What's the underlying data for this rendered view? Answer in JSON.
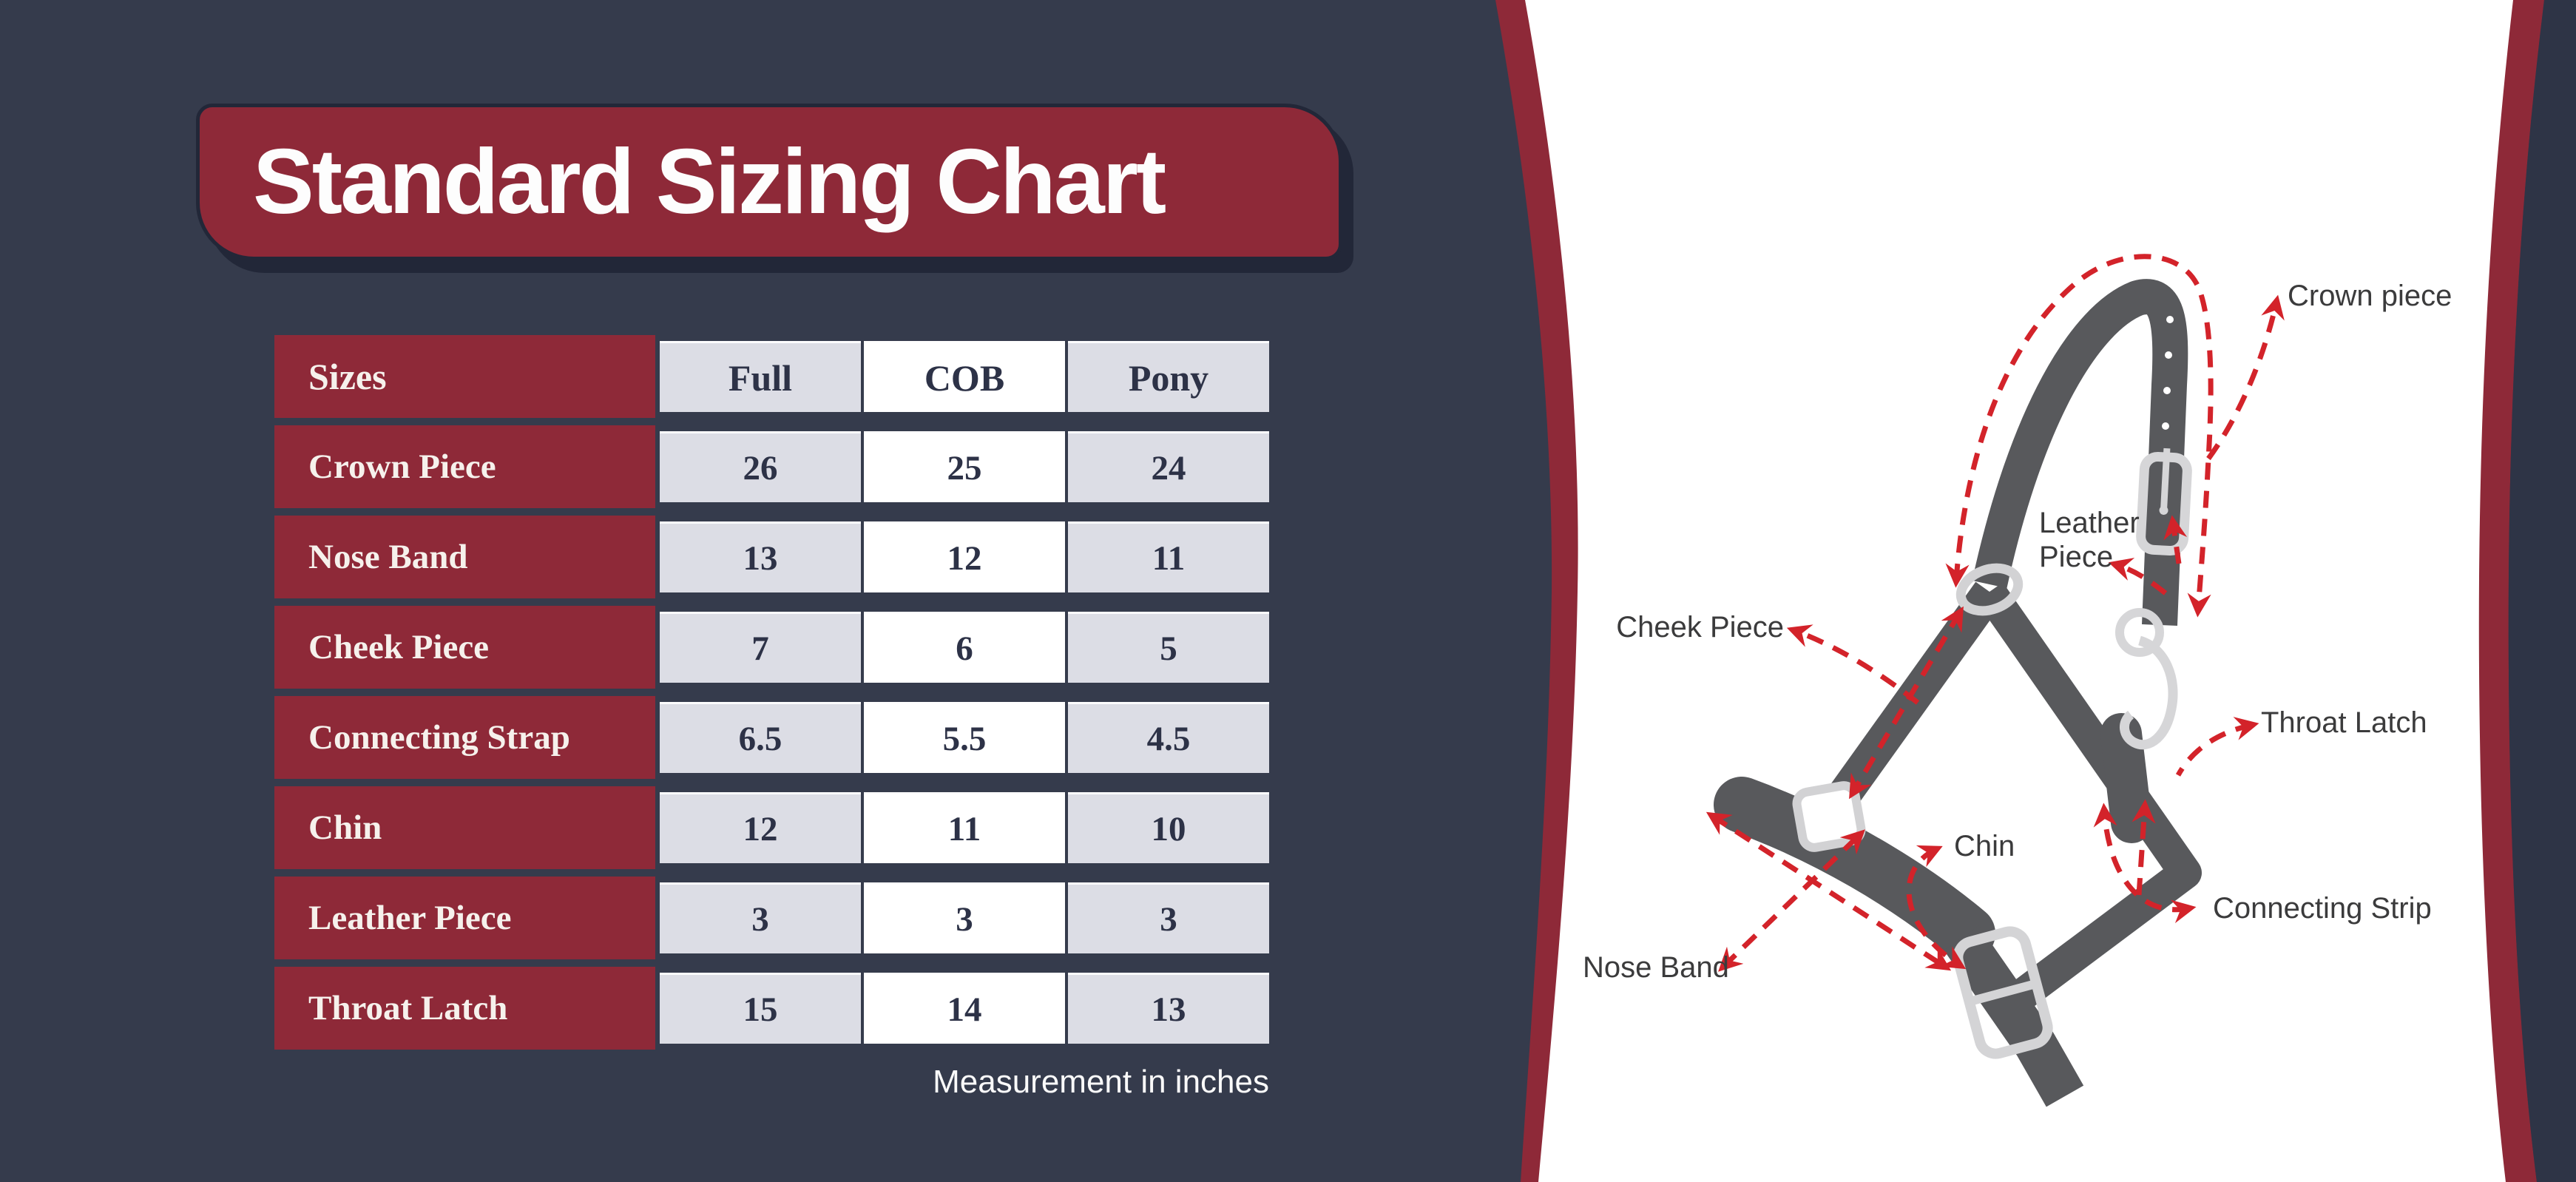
{
  "title": "Standard Sizing Chart",
  "table": {
    "header": {
      "label": "Sizes",
      "columns": [
        "Full",
        "COB",
        "Pony"
      ]
    },
    "rows": [
      {
        "label": "Crown Piece",
        "values": [
          "26",
          "25",
          "24"
        ]
      },
      {
        "label": "Nose Band",
        "values": [
          "13",
          "12",
          "11"
        ]
      },
      {
        "label": "Cheek Piece",
        "values": [
          "7",
          "6",
          "5"
        ]
      },
      {
        "label": "Connecting Strap",
        "values": [
          "6.5",
          "5.5",
          "4.5"
        ]
      },
      {
        "label": "Chin",
        "values": [
          "12",
          "11",
          "10"
        ]
      },
      {
        "label": "Leather Piece",
        "values": [
          "3",
          "3",
          "3"
        ]
      },
      {
        "label": "Throat Latch",
        "values": [
          "15",
          "14",
          "13"
        ]
      }
    ],
    "footnote": "Measurement in inches"
  },
  "diagram": {
    "labels": {
      "crown": "Crown piece",
      "leather": [
        "Leather",
        "Piece"
      ],
      "cheek": "Cheek Piece",
      "throat": "Throat Latch",
      "chin": "Chin",
      "connecting": "Connecting Strip",
      "nose": "Nose Band"
    }
  },
  "chart_data": {
    "type": "table",
    "title": "Standard Sizing Chart",
    "columns": [
      "Sizes",
      "Full",
      "COB",
      "Pony"
    ],
    "rows": [
      [
        "Crown Piece",
        26,
        25,
        24
      ],
      [
        "Nose Band",
        13,
        12,
        11
      ],
      [
        "Cheek Piece",
        7,
        6,
        5
      ],
      [
        "Connecting Strap",
        6.5,
        5.5,
        4.5
      ],
      [
        "Chin",
        12,
        11,
        10
      ],
      [
        "Leather Piece",
        3,
        3,
        3
      ],
      [
        "Throat Latch",
        15,
        14,
        13
      ]
    ],
    "note": "Measurement in inches"
  },
  "colors": {
    "background_navy": "#353b4c",
    "right_navy": "#2e3446",
    "accent_maroon": "#8e2938",
    "shadow_navy": "#222738",
    "cell_gray": "#dcdde5",
    "cell_white": "#ffffff",
    "table_text": "#2d3247",
    "red_dashed": "#d3232a",
    "strap_gray": "#58595c",
    "hardware_silver": "#d6d6d8"
  }
}
